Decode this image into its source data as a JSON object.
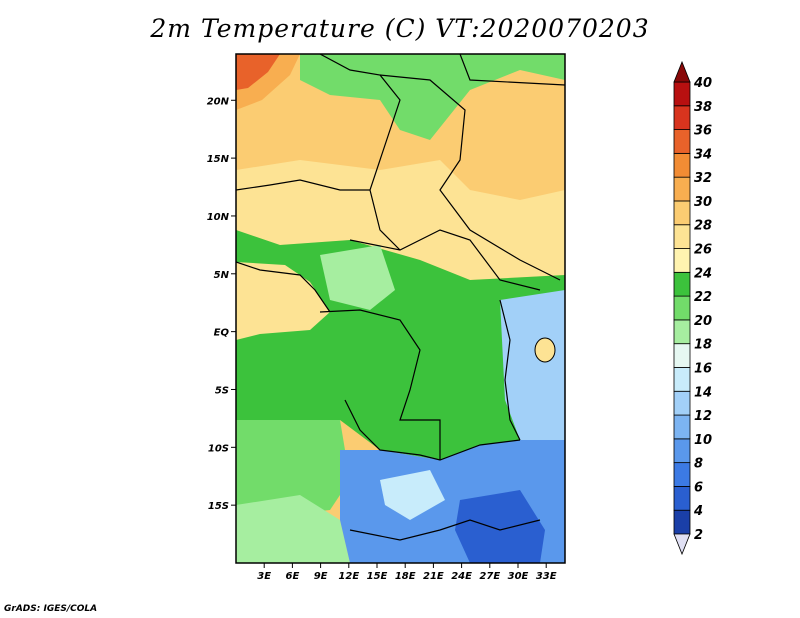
{
  "title": "2m Temperature (C) VT:2020070203",
  "footer": "GrADS: IGES/COLA",
  "map": {
    "lon_range": [
      0,
      35
    ],
    "lat_range": [
      -20,
      24
    ],
    "lon_ticks": [
      "3E",
      "6E",
      "9E",
      "12E",
      "15E",
      "18E",
      "21E",
      "24E",
      "27E",
      "30E",
      "33E"
    ],
    "lat_ticks": [
      "20N",
      "15N",
      "10N",
      "5N",
      "EQ",
      "5S",
      "10S",
      "15S"
    ]
  },
  "colorbar": {
    "levels": [
      "2",
      "4",
      "6",
      "8",
      "10",
      "12",
      "14",
      "16",
      "18",
      "20",
      "22",
      "24",
      "26",
      "28",
      "30",
      "32",
      "34",
      "36",
      "38",
      "40"
    ],
    "colors": [
      "#0a1e6e",
      "#1a3fa8",
      "#2a5fd0",
      "#3c7ae4",
      "#5a98ec",
      "#7cb4f2",
      "#a2d0f8",
      "#c8ecfb",
      "#e6f8f2",
      "#a6eea0",
      "#72dc6a",
      "#3cc23c",
      "#fff3b0",
      "#fde394",
      "#fbcc72",
      "#f8ae50",
      "#f28c34",
      "#e8622a",
      "#d8341e",
      "#b81010",
      "#880808"
    ]
  },
  "regions": [
    {
      "name": "sahara-warm",
      "color": "#fbcc72"
    },
    {
      "name": "sahel-yellow",
      "color": "#fde394"
    },
    {
      "name": "congo-green",
      "color": "#3cc23c"
    },
    {
      "name": "angola-green",
      "color": "#72dc6a"
    },
    {
      "name": "southern-blue",
      "color": "#5a98ec"
    }
  ]
}
